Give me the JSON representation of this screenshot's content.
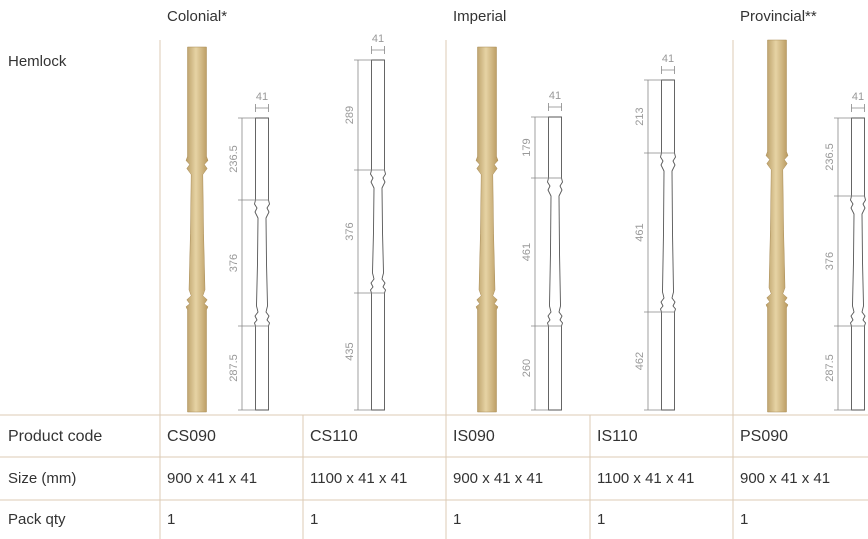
{
  "header": {
    "groups": [
      "Colonial*",
      "Imperial",
      "Provincial**"
    ],
    "species": "Hemlock"
  },
  "drawings": [
    {
      "width": "41",
      "dims": [
        "236.5",
        "376",
        "287.5"
      ]
    },
    {
      "width": "41",
      "dims": [
        "289",
        "376",
        "435"
      ]
    },
    {
      "width": "41",
      "dims": [
        "179",
        "461",
        "260"
      ]
    },
    {
      "width": "41",
      "dims": [
        "213",
        "461",
        "462"
      ]
    },
    {
      "width": "41",
      "dims": [
        "236.5",
        "376",
        "287.5"
      ]
    }
  ],
  "table": {
    "rows": [
      [
        "Product code",
        "CS090",
        "CS110",
        "IS090",
        "IS110",
        "PS090"
      ],
      [
        "Size (mm)",
        "900 x 41 x 41",
        "1100 x 41 x 41",
        "900 x 41 x 41",
        "1100 x 41 x 41",
        "900 x 41 x 41"
      ],
      [
        "Pack qty",
        "1",
        "1",
        "1",
        "1",
        "1"
      ]
    ]
  }
}
